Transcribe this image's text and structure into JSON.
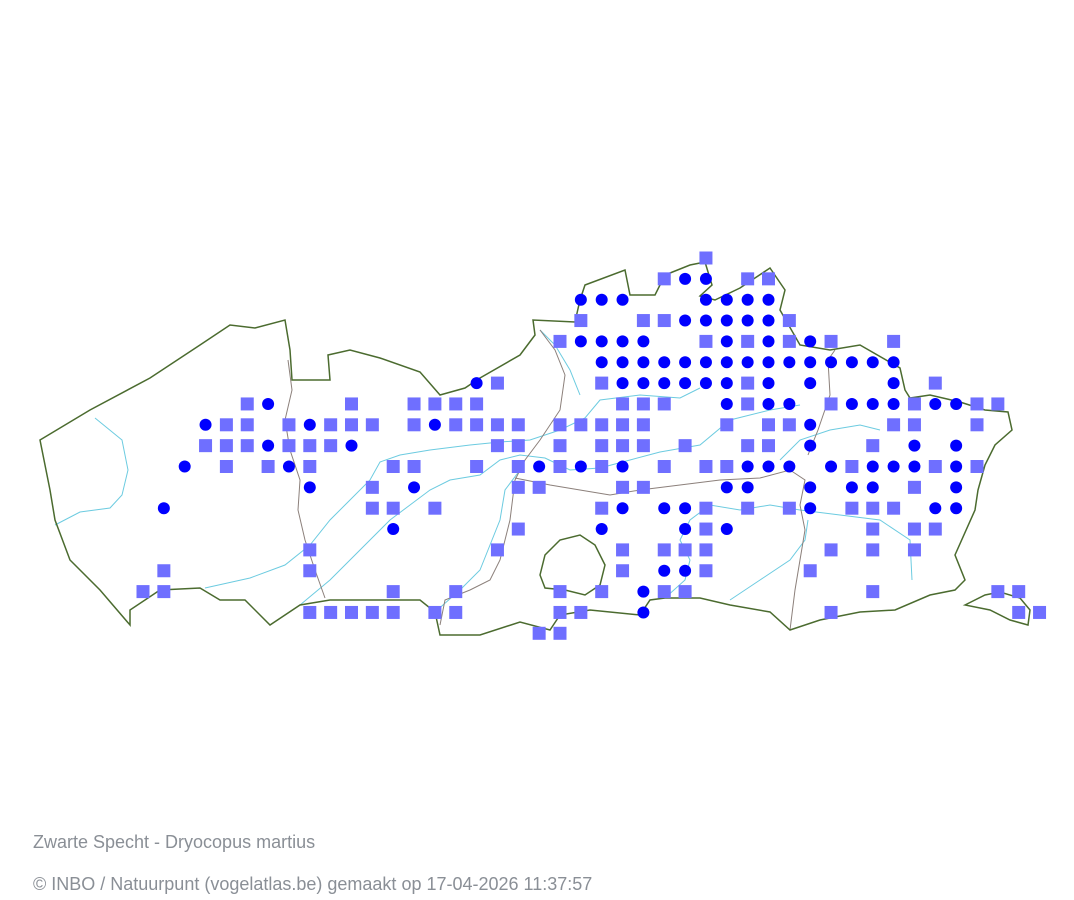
{
  "map": {
    "species_caption": "Zwarte Specht - Dryocopus martius",
    "credit": "© INBO / Natuurpunt (vogelatlas.be) gemaakt op 17-04-2026 11:37:57",
    "colors": {
      "confirmed_circle": "#0000ff",
      "probable_square": "#6f6fff",
      "region_border": "#4b6b2f",
      "province_border": "#8c807b",
      "river": "#6ccbe0"
    },
    "marker_types": {
      "o": "circle",
      "s": "square"
    },
    "grid_rows": [
      {
        "o": [],
        "s": [
          27
        ]
      },
      {
        "o": [
          26,
          27
        ],
        "s": [
          25,
          29,
          30
        ]
      },
      {
        "o": [
          21,
          22,
          23,
          27,
          28,
          29,
          30
        ],
        "s": []
      },
      {
        "o": [
          26,
          27,
          28,
          29,
          30
        ],
        "s": [
          21,
          24,
          25,
          31
        ]
      },
      {
        "o": [
          21,
          22,
          23,
          24,
          28,
          30,
          32
        ],
        "s": [
          20,
          27,
          29,
          31,
          33,
          36
        ]
      },
      {
        "o": [
          22,
          23,
          24,
          25,
          26,
          27,
          28,
          29,
          30,
          31,
          32,
          33,
          34,
          35,
          36
        ],
        "s": []
      },
      {
        "o": [
          16,
          23,
          24,
          25,
          26,
          27,
          28,
          30,
          32,
          36
        ],
        "s": [
          17,
          22,
          29,
          38
        ]
      },
      {
        "o": [
          6,
          28,
          30,
          31,
          34,
          35,
          36,
          38,
          39
        ],
        "s": [
          5,
          10,
          13,
          14,
          15,
          16,
          23,
          24,
          25,
          29,
          33,
          37,
          40,
          41
        ]
      },
      {
        "o": [
          3,
          8,
          14,
          32
        ],
        "s": [
          4,
          5,
          7,
          9,
          10,
          11,
          13,
          15,
          16,
          17,
          18,
          20,
          21,
          22,
          23,
          24,
          28,
          30,
          31,
          36,
          37,
          40
        ]
      },
      {
        "o": [
          6,
          10,
          32,
          37,
          39
        ],
        "s": [
          3,
          4,
          5,
          7,
          8,
          9,
          17,
          18,
          20,
          22,
          23,
          24,
          26,
          29,
          30,
          35
        ]
      },
      {
        "o": [
          2,
          7,
          19,
          21,
          23,
          29,
          30,
          31,
          33,
          35,
          36,
          37,
          39
        ],
        "s": [
          4,
          6,
          8,
          12,
          13,
          16,
          18,
          20,
          22,
          25,
          27,
          28,
          34,
          38,
          40
        ]
      },
      {
        "o": [
          8,
          13,
          28,
          29,
          32,
          34,
          35,
          39
        ],
        "s": [
          11,
          18,
          19,
          23,
          24,
          37
        ]
      },
      {
        "o": [
          1,
          23,
          25,
          26,
          32,
          38,
          39
        ],
        "s": [
          11,
          12,
          14,
          22,
          27,
          29,
          31,
          34,
          35,
          36
        ]
      },
      {
        "o": [
          12,
          22,
          26,
          28
        ],
        "s": [
          18,
          27,
          35,
          37,
          38
        ]
      },
      {
        "o": [],
        "s": [
          8,
          17,
          23,
          25,
          26,
          27,
          33,
          35,
          37
        ]
      },
      {
        "o": [
          25,
          26
        ],
        "s": [
          1,
          8,
          23,
          27,
          32
        ]
      },
      {
        "o": [
          24
        ],
        "s": [
          0,
          1,
          12,
          15,
          20,
          22,
          25,
          26,
          35,
          41,
          42
        ]
      },
      {
        "o": [
          24
        ],
        "s": [
          8,
          9,
          10,
          11,
          12,
          14,
          15,
          20,
          21,
          33,
          42,
          43
        ]
      },
      {
        "o": [],
        "s": [
          19,
          20
        ]
      }
    ]
  }
}
